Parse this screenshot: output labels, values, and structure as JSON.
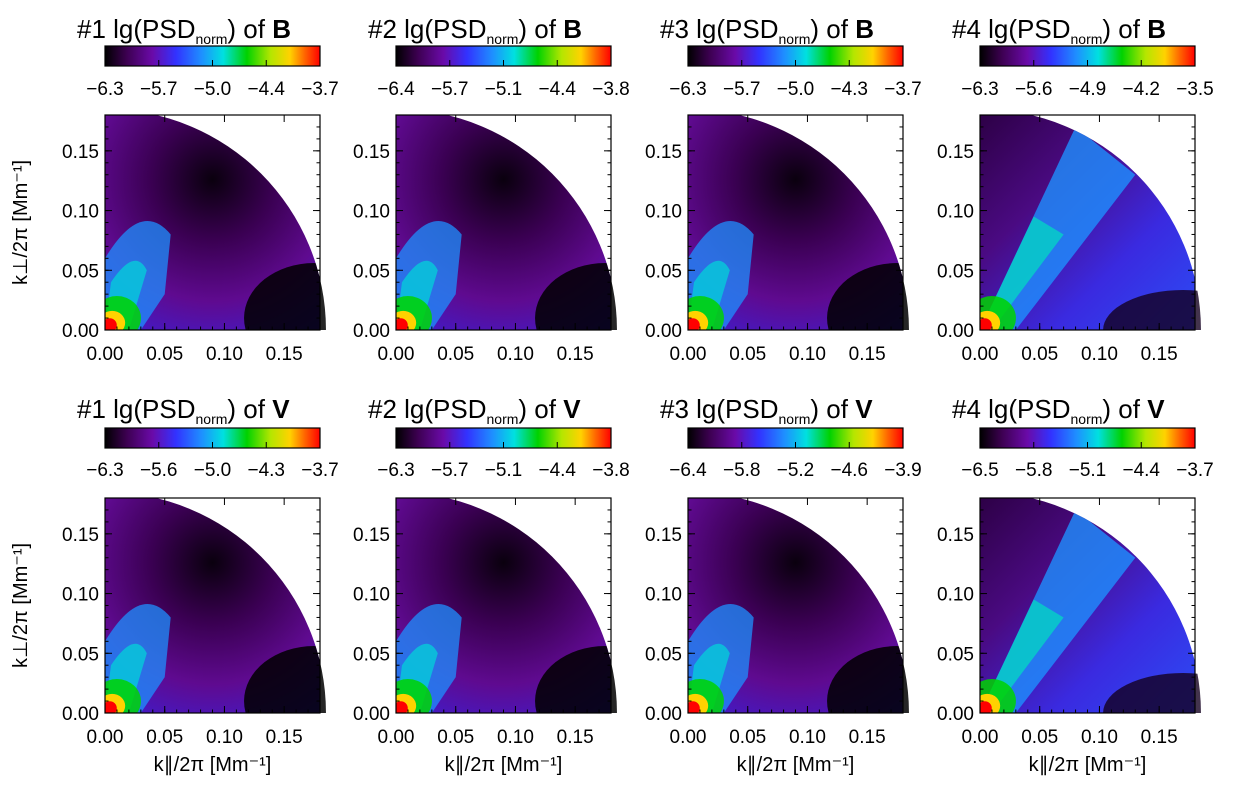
{
  "colormap": "rainbow (black-purple-blue-cyan-green-yellow-red)",
  "axis_ticks": [
    "0.00",
    "0.05",
    "0.10",
    "0.15"
  ],
  "labels": {
    "xlabel": "k∥/2π  [Mm⁻¹]",
    "ylabel": "k⊥/2π  [Mm⁻¹]",
    "title_mid": "lg(PSD",
    "title_sub": "norm",
    "title_end": ")  of "
  },
  "chart_data": [
    {
      "type": "heatmap",
      "row": 0,
      "col": 0,
      "case": "#1",
      "field": "B",
      "colorbar_ticks": [
        "−6.3",
        "−5.7",
        "−5.0",
        "−4.4",
        "−3.7"
      ],
      "xlim": [
        0,
        0.18
      ],
      "ylim": [
        0,
        0.18
      ],
      "grid": false
    },
    {
      "type": "heatmap",
      "row": 0,
      "col": 1,
      "case": "#2",
      "field": "B",
      "colorbar_ticks": [
        "−6.4",
        "−5.7",
        "−5.1",
        "−4.4",
        "−3.8"
      ],
      "xlim": [
        0,
        0.18
      ],
      "ylim": [
        0,
        0.18
      ],
      "grid": false
    },
    {
      "type": "heatmap",
      "row": 0,
      "col": 2,
      "case": "#3",
      "field": "B",
      "colorbar_ticks": [
        "−6.3",
        "−5.7",
        "−5.0",
        "−4.3",
        "−3.7"
      ],
      "xlim": [
        0,
        0.18
      ],
      "ylim": [
        0,
        0.18
      ],
      "grid": false
    },
    {
      "type": "heatmap",
      "row": 0,
      "col": 3,
      "case": "#4",
      "field": "B",
      "colorbar_ticks": [
        "−6.3",
        "−5.6",
        "−4.9",
        "−4.2",
        "−3.5"
      ],
      "xlim": [
        0,
        0.18
      ],
      "ylim": [
        0,
        0.18
      ],
      "grid": false
    },
    {
      "type": "heatmap",
      "row": 1,
      "col": 0,
      "case": "#1",
      "field": "V",
      "colorbar_ticks": [
        "−6.3",
        "−5.6",
        "−5.0",
        "−4.3",
        "−3.7"
      ],
      "xlim": [
        0,
        0.18
      ],
      "ylim": [
        0,
        0.18
      ],
      "grid": false
    },
    {
      "type": "heatmap",
      "row": 1,
      "col": 1,
      "case": "#2",
      "field": "V",
      "colorbar_ticks": [
        "−6.3",
        "−5.7",
        "−5.1",
        "−4.4",
        "−3.8"
      ],
      "xlim": [
        0,
        0.18
      ],
      "ylim": [
        0,
        0.18
      ],
      "grid": false
    },
    {
      "type": "heatmap",
      "row": 1,
      "col": 2,
      "case": "#3",
      "field": "V",
      "colorbar_ticks": [
        "−6.4",
        "−5.8",
        "−5.2",
        "−4.6",
        "−3.9"
      ],
      "xlim": [
        0,
        0.18
      ],
      "ylim": [
        0,
        0.18
      ],
      "grid": false
    },
    {
      "type": "heatmap",
      "row": 1,
      "col": 3,
      "case": "#4",
      "field": "V",
      "colorbar_ticks": [
        "−6.5",
        "−5.8",
        "−5.1",
        "−4.4",
        "−3.7"
      ],
      "xlim": [
        0,
        0.18
      ],
      "ylim": [
        0,
        0.18
      ],
      "grid": false
    }
  ]
}
